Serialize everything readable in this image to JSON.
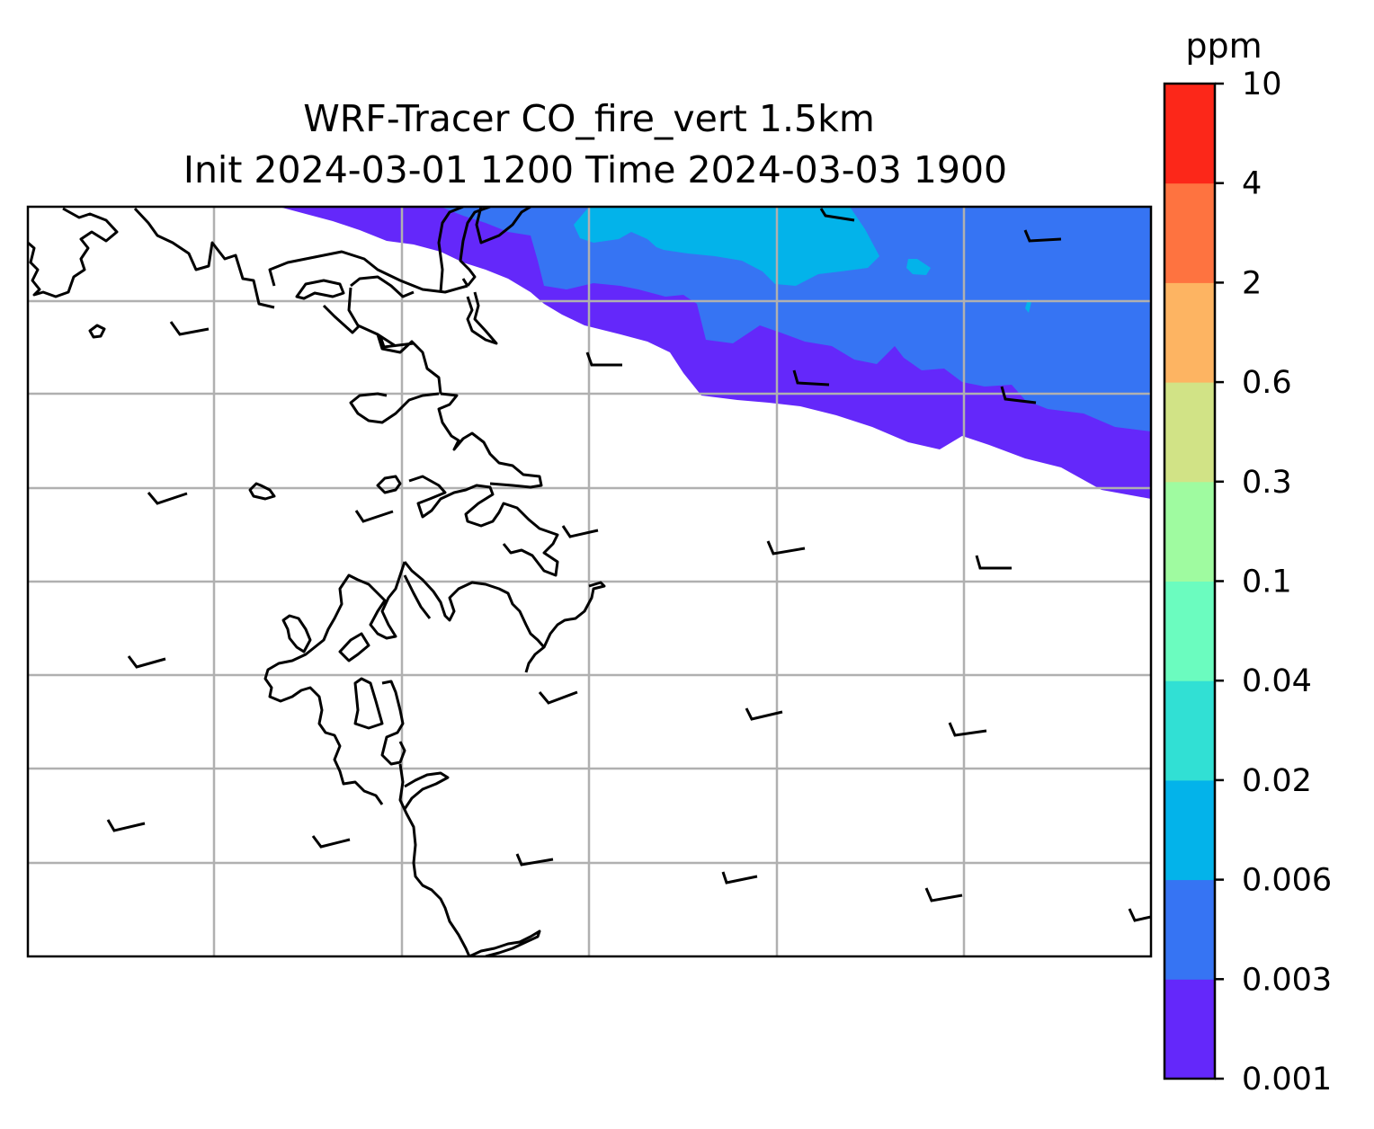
{
  "title": {
    "line1": "WRF-Tracer CO_fire_vert 1.5km",
    "line2": "Init 2024-03-01 1200 Time 2024-03-03 1900"
  },
  "colorbar": {
    "unit": "ppm",
    "levels": [
      "0.001",
      "0.003",
      "0.006",
      "0.02",
      "0.04",
      "0.1",
      "0.3",
      "0.6",
      "2",
      "4",
      "10"
    ],
    "colors": [
      "#6428fa",
      "#3674f3",
      "#03b3ea",
      "#31e0d4",
      "#6bfcbf",
      "#9ffba0",
      "#d1e386",
      "#fdb462",
      "#fe7340",
      "#fc2719"
    ]
  },
  "map": {
    "gridlines": true,
    "coastline_color": "#000000",
    "grid_color": "#b0b0b0",
    "plume_levels_shown": [
      "0.001",
      "0.003",
      "0.006"
    ]
  }
}
